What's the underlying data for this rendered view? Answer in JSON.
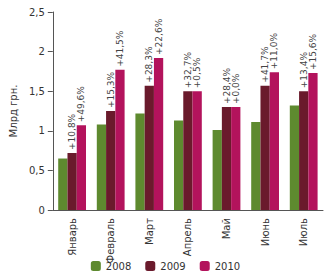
{
  "chart_data": {
    "type": "bar",
    "ylabel": "Млрд грн.",
    "categories": [
      "Январь",
      "Февраль",
      "Март",
      "Апрель",
      "Май",
      "Июнь",
      "Июль"
    ],
    "series": [
      {
        "name": "2008",
        "color": "#5e8a2f",
        "values": [
          0.65,
          1.08,
          1.22,
          1.13,
          1.01,
          1.11,
          1.32
        ],
        "annotations": [
          null,
          null,
          null,
          null,
          null,
          null,
          null
        ]
      },
      {
        "name": "2009",
        "color": "#6a1a2c",
        "values": [
          0.72,
          1.25,
          1.57,
          1.5,
          1.3,
          1.57,
          1.5
        ],
        "annotations": [
          "+10,8%",
          "+15,3%",
          "+28,3%",
          "+32,7%",
          "+28,4%",
          "+41,7%",
          "+13,4%"
        ]
      },
      {
        "name": "2010",
        "color": "#b3135c",
        "values": [
          1.07,
          1.77,
          1.92,
          1.5,
          1.3,
          1.74,
          1.73
        ],
        "annotations": [
          "+49,6%",
          "+41,5%",
          "+22,6%",
          "+0,5%",
          "+0,0%",
          "+11,0%",
          "+15,6%"
        ]
      }
    ],
    "ylim": [
      0,
      2.5
    ],
    "yticks": [
      0,
      {
        "value": 0.5,
        "label": "0,5"
      },
      1,
      {
        "value": 1.5,
        "label": "1,5"
      },
      2,
      {
        "value": 2.5,
        "label": "2,5"
      }
    ],
    "grid": false,
    "legend": "bottom"
  }
}
